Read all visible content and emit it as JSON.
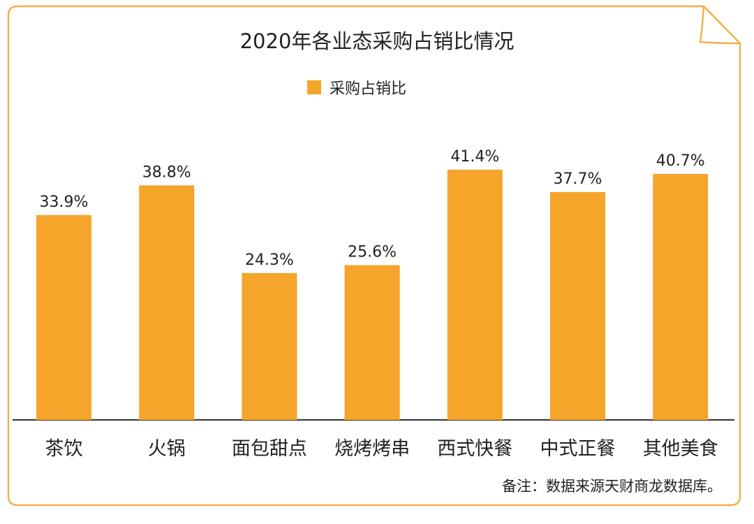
{
  "colors": {
    "bar": "#F5A52A",
    "frame": "#F2B04A",
    "axis": "#333333",
    "text": "#222222"
  },
  "chart_data": {
    "type": "bar",
    "title": "2020年各业态采购占销比情况",
    "legend_position": "top-center",
    "grid": false,
    "categories": [
      "茶饮",
      "火锅",
      "面包甜点",
      "烧烤烤串",
      "西式快餐",
      "中式正餐",
      "其他美食"
    ],
    "series": [
      {
        "name": "采购占销比",
        "values": [
          33.9,
          38.8,
          24.3,
          25.6,
          41.4,
          37.7,
          40.7
        ],
        "labels": [
          "33.9%",
          "38.8%",
          "24.3%",
          "25.6%",
          "41.4%",
          "37.7%",
          "40.7%"
        ]
      }
    ],
    "ylim": [
      0,
      47
    ]
  },
  "footnote": "备注：数据来源天财商龙数据库。"
}
